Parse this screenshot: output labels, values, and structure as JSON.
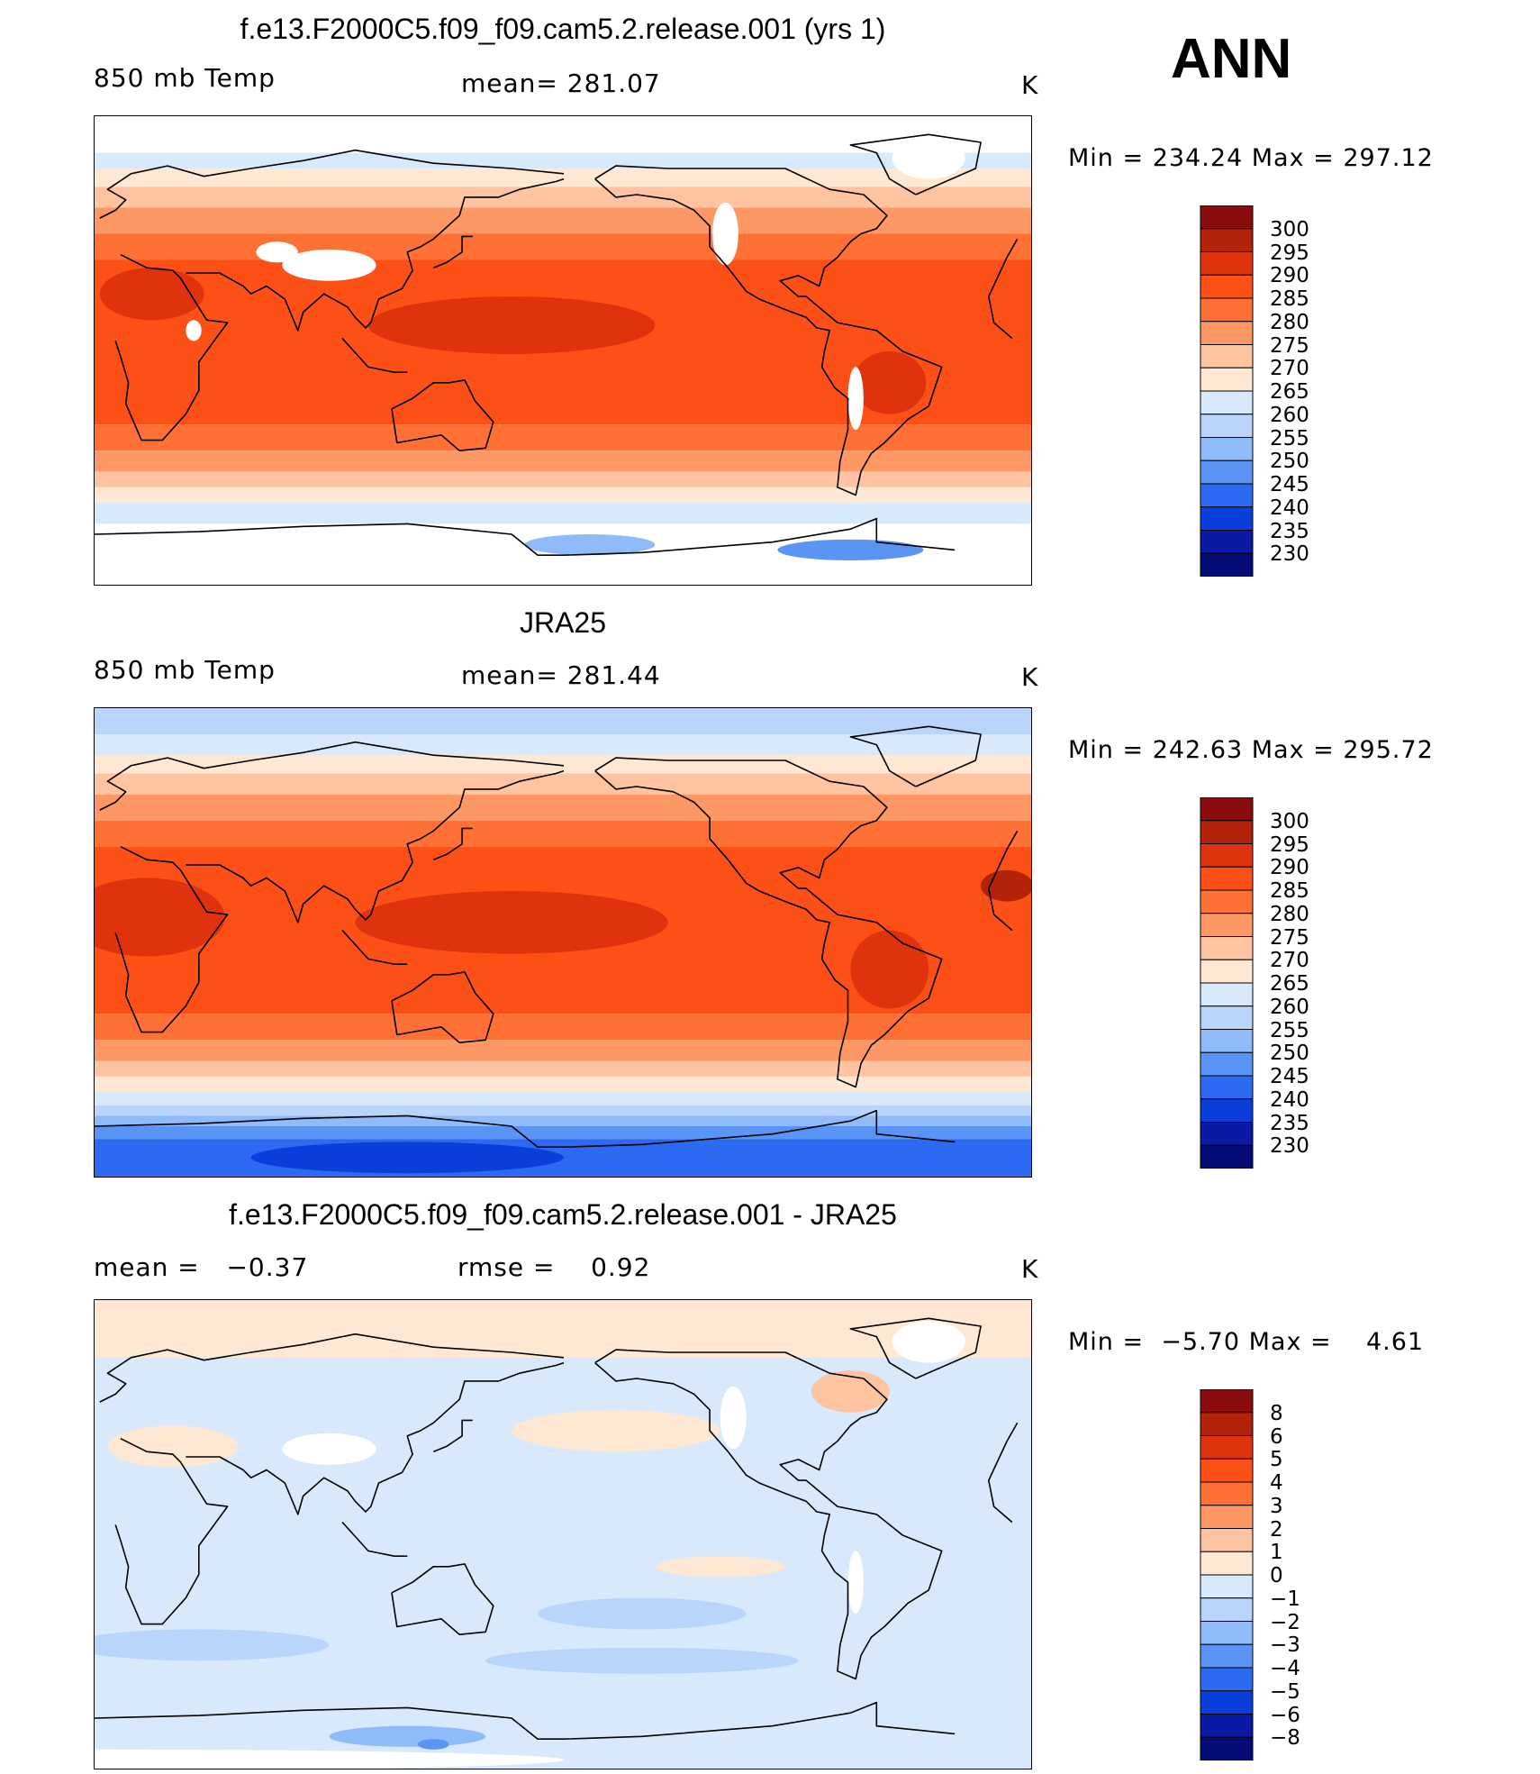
{
  "season": "ANN",
  "panels": [
    {
      "title": "f.e13.F2000C5.f09_f09.cam5.2.release.001 (yrs 1)",
      "left_label": "850 mb Temp",
      "center_label": "mean= 281.07",
      "units": "K",
      "minmax": "Min = 234.24 Max = 297.12",
      "levels": [
        "300",
        "295",
        "290",
        "285",
        "280",
        "275",
        "270",
        "265",
        "260",
        "255",
        "250",
        "245",
        "240",
        "235",
        "230"
      ],
      "colors": [
        "#8b0c0c",
        "#b3230a",
        "#e0320c",
        "#fd5016",
        "#fe7033",
        "#fd9865",
        "#fec3a0",
        "#fee7d3",
        "#d8e9fc",
        "#bad5fb",
        "#8fbbf9",
        "#5a95f6",
        "#2d6af2",
        "#0a3fdc",
        "#0a1aa4",
        "#060d78"
      ],
      "bands": [
        {
          "bnd": 90,
          "color": "#ffffff"
        },
        {
          "bnd": 76,
          "color": "#d8e9fc"
        },
        {
          "bnd": 70,
          "color": "#fee7d3"
        },
        {
          "bnd": 63,
          "color": "#fec3a0"
        },
        {
          "bnd": 55,
          "color": "#fd9865"
        },
        {
          "bnd": 45,
          "color": "#fe7033"
        },
        {
          "bnd": 35,
          "color": "#fd5016"
        },
        {
          "bnd": -28,
          "color": "#fe7033"
        },
        {
          "bnd": -38,
          "color": "#fd9865"
        },
        {
          "bnd": -46,
          "color": "#fec3a0"
        },
        {
          "bnd": -52,
          "color": "#fee7d3"
        },
        {
          "bnd": -58,
          "color": "#d8e9fc"
        },
        {
          "bnd": -66,
          "color": "#ffffff"
        }
      ],
      "blobs": [
        {
          "lon": 160,
          "lat": 10,
          "rx": 55,
          "ry": 11,
          "color": "#e0320c"
        },
        {
          "lon": 22,
          "lat": 22,
          "rx": 20,
          "ry": 10,
          "color": "#e0320c"
        },
        {
          "lon": -55,
          "lat": -12,
          "rx": 14,
          "ry": 12,
          "color": "#e0320c"
        },
        {
          "lon": -70,
          "lat": -76,
          "rx": 28,
          "ry": 4,
          "color": "#5a95f6"
        },
        {
          "lon": -170,
          "lat": -74,
          "rx": 25,
          "ry": 4,
          "color": "#8fbbf9"
        }
      ],
      "patches": [
        {
          "lon": 90,
          "lat": 33,
          "rx": 18,
          "ry": 6,
          "color": "#ffffff"
        },
        {
          "lon": 70,
          "lat": 38,
          "rx": 8,
          "ry": 4,
          "color": "#ffffff"
        },
        {
          "lon": -118,
          "lat": 45,
          "rx": 5,
          "ry": 12,
          "color": "#ffffff"
        },
        {
          "lon": -68,
          "lat": -18,
          "rx": 3,
          "ry": 12,
          "color": "#ffffff"
        },
        {
          "lon": 38,
          "lat": 8,
          "rx": 3,
          "ry": 4,
          "color": "#ffffff"
        },
        {
          "lon": -40,
          "lat": 74,
          "rx": 14,
          "ry": 8,
          "color": "#ffffff"
        }
      ]
    },
    {
      "title": "JRA25",
      "left_label": "850 mb Temp",
      "center_label": "mean= 281.44",
      "units": "K",
      "minmax": "Min = 242.63 Max = 295.72",
      "levels": [
        "300",
        "295",
        "290",
        "285",
        "280",
        "275",
        "270",
        "265",
        "260",
        "255",
        "250",
        "245",
        "240",
        "235",
        "230"
      ],
      "colors": [
        "#8b0c0c",
        "#b3230a",
        "#e0320c",
        "#fd5016",
        "#fe7033",
        "#fd9865",
        "#fec3a0",
        "#fee7d3",
        "#d8e9fc",
        "#bad5fb",
        "#8fbbf9",
        "#5a95f6",
        "#2d6af2",
        "#0a3fdc",
        "#0a1aa4",
        "#060d78"
      ],
      "bands": [
        {
          "bnd": 90,
          "color": "#bad5fb"
        },
        {
          "bnd": 80,
          "color": "#d8e9fc"
        },
        {
          "bnd": 72,
          "color": "#fee7d3"
        },
        {
          "bnd": 65,
          "color": "#fec3a0"
        },
        {
          "bnd": 57,
          "color": "#fd9865"
        },
        {
          "bnd": 47,
          "color": "#fe7033"
        },
        {
          "bnd": 37,
          "color": "#fd5016"
        },
        {
          "bnd": -27,
          "color": "#fe7033"
        },
        {
          "bnd": -37,
          "color": "#fd9865"
        },
        {
          "bnd": -45,
          "color": "#fec3a0"
        },
        {
          "bnd": -51,
          "color": "#fee7d3"
        },
        {
          "bnd": -57,
          "color": "#d8e9fc"
        },
        {
          "bnd": -62,
          "color": "#bad5fb"
        },
        {
          "bnd": -66,
          "color": "#8fbbf9"
        },
        {
          "bnd": -70,
          "color": "#5a95f6"
        },
        {
          "bnd": -75,
          "color": "#2d6af2"
        },
        {
          "bnd": -85,
          "color": "#2d6af2"
        }
      ],
      "blobs": [
        {
          "lon": 160,
          "lat": 8,
          "rx": 60,
          "ry": 12,
          "color": "#e0320c"
        },
        {
          "lon": 20,
          "lat": 10,
          "rx": 30,
          "ry": 15,
          "color": "#e0320c"
        },
        {
          "lon": -55,
          "lat": -10,
          "rx": 15,
          "ry": 15,
          "color": "#e0320c"
        },
        {
          "lon": -10,
          "lat": 22,
          "rx": 10,
          "ry": 6,
          "color": "#b3230a"
        },
        {
          "lon": 120,
          "lat": -82,
          "rx": 60,
          "ry": 6,
          "color": "#0a3fdc"
        },
        {
          "lon": -80,
          "lat": -82,
          "rx": 30,
          "ry": 3,
          "color": "#2d6af2"
        }
      ],
      "patches": []
    },
    {
      "title": "f.e13.F2000C5.f09_f09.cam5.2.release.001 - JRA25",
      "left_label": "mean =   −0.37",
      "center_label": "rmse =    0.92",
      "units": "K",
      "minmax": "Min =  −5.70 Max =    4.61",
      "levels": [
        "8",
        "6",
        "5",
        "4",
        "3",
        "2",
        "1",
        "0",
        "−1",
        "−2",
        "−3",
        "−4",
        "−5",
        "−6",
        "−8"
      ],
      "colors": [
        "#8b0c0c",
        "#b3230a",
        "#e0320c",
        "#fd5016",
        "#fe7033",
        "#fd9865",
        "#fec3a0",
        "#fee7d3",
        "#d8e9fc",
        "#bad5fb",
        "#8fbbf9",
        "#5a95f6",
        "#2d6af2",
        "#0a3fdc",
        "#0a1aa4",
        "#060d78"
      ],
      "bands": [
        {
          "bnd": 90,
          "color": "#fee7d3"
        },
        {
          "bnd": 68,
          "color": "#d8e9fc"
        },
        {
          "bnd": -85,
          "color": "#d8e9fc"
        }
      ],
      "blobs": [
        {
          "lon": 30,
          "lat": 34,
          "rx": 25,
          "ry": 8,
          "color": "#fee7d3"
        },
        {
          "lon": -160,
          "lat": 40,
          "rx": 40,
          "ry": 8,
          "color": "#fee7d3"
        },
        {
          "lon": -120,
          "lat": -12,
          "rx": 25,
          "ry": 4,
          "color": "#fee7d3"
        },
        {
          "lon": -70,
          "lat": 55,
          "rx": 15,
          "ry": 8,
          "color": "#fec3a0"
        },
        {
          "lon": 40,
          "lat": -42,
          "rx": 50,
          "ry": 6,
          "color": "#bad5fb"
        },
        {
          "lon": -150,
          "lat": -48,
          "rx": 60,
          "ry": 5,
          "color": "#bad5fb"
        },
        {
          "lon": 120,
          "lat": -77,
          "rx": 30,
          "ry": 4,
          "color": "#8fbbf9"
        },
        {
          "lon": 130,
          "lat": -80,
          "rx": 6,
          "ry": 2,
          "color": "#5a95f6"
        },
        {
          "lon": -150,
          "lat": -30,
          "rx": 40,
          "ry": 6,
          "color": "#bad5fb"
        }
      ],
      "patches": [
        {
          "lon": 90,
          "lat": 33,
          "rx": 18,
          "ry": 6,
          "color": "#ffffff"
        },
        {
          "lon": -115,
          "lat": 45,
          "rx": 5,
          "ry": 12,
          "color": "#ffffff"
        },
        {
          "lon": -68,
          "lat": -18,
          "rx": 3,
          "ry": 12,
          "color": "#ffffff"
        },
        {
          "lon": -40,
          "lat": 74,
          "rx": 14,
          "ry": 8,
          "color": "#ffffff"
        },
        {
          "lon": 0,
          "lat": -86,
          "rx": 180,
          "ry": 4,
          "color": "#ffffff"
        }
      ]
    }
  ]
}
